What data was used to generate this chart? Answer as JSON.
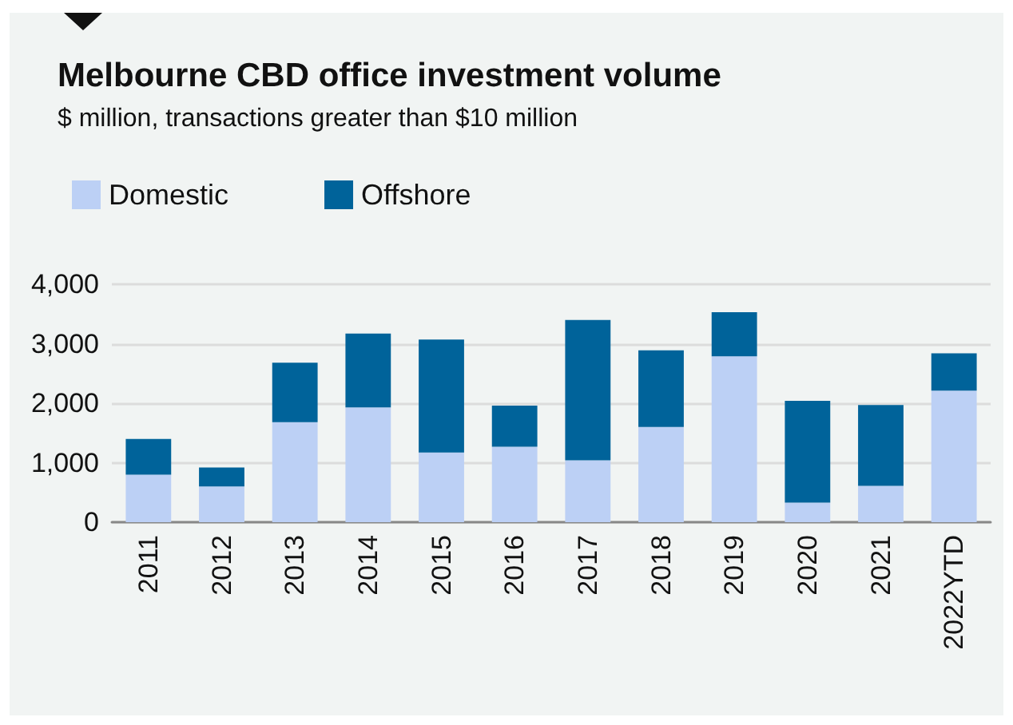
{
  "chart_data": {
    "type": "bar",
    "title": "Melbourne CBD office investment volume",
    "subtitle": "$ million, transactions greater than $10 million",
    "categories": [
      "2011",
      "2012",
      "2013",
      "2014",
      "2015",
      "2016",
      "2017",
      "2018",
      "2019",
      "2020",
      "2021",
      "2022YTD"
    ],
    "series": [
      {
        "name": "Domestic",
        "color": "#bcd0f5",
        "values": [
          800,
          600,
          1680,
          1930,
          1170,
          1270,
          1040,
          1600,
          2790,
          330,
          610,
          2210
        ]
      },
      {
        "name": "Offshore",
        "color": "#00639a",
        "values": [
          600,
          320,
          1000,
          1240,
          1900,
          690,
          2360,
          1290,
          740,
          1710,
          1360,
          630
        ]
      }
    ],
    "stacked": true,
    "ylim": [
      0,
      4000
    ],
    "yticks": [
      {
        "value": 0,
        "label": "0"
      },
      {
        "value": 1000,
        "label": "1,000"
      },
      {
        "value": 2000,
        "label": "2,000"
      },
      {
        "value": 3000,
        "label": "3,000"
      },
      {
        "value": 4000,
        "label": "4,000"
      }
    ],
    "grid": "y",
    "legend": "top left"
  }
}
